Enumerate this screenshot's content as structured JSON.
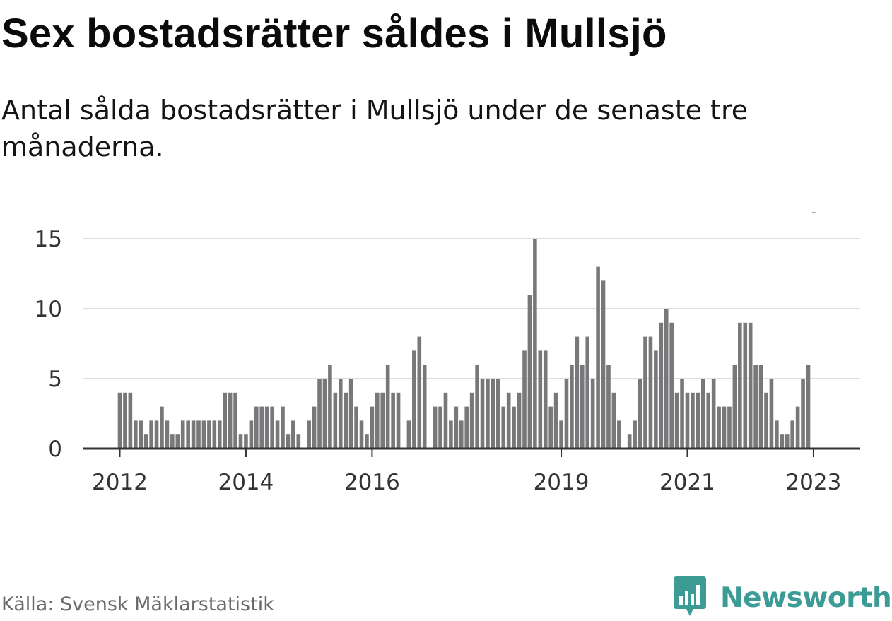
{
  "title": "Sex bostadsrätter såldes i Mullsjö",
  "subtitle": "Antal sålda bostadsrätter i Mullsjö under de senaste tre månaderna.",
  "source": "Källa: Svensk Mäklarstatistik",
  "brand": {
    "name": "Newsworthy",
    "icon": "bar-chart-logo-icon"
  },
  "colors": {
    "bar": "#78787a",
    "highlight": "#17a097",
    "grid": "#dddddd",
    "axis": "#333333",
    "brand": "#3c9c95"
  },
  "chart_data": {
    "type": "bar",
    "title": "Sex bostadsrätter såldes i Mullsjö",
    "subtitle": "Antal sålda bostadsrätter i Mullsjö under de senaste tre månaderna.",
    "xlabel": "",
    "ylabel": "",
    "ylim": [
      0,
      15
    ],
    "yticks": [
      0,
      5,
      10,
      15
    ],
    "grid": true,
    "start": {
      "year": 2012,
      "month": 1
    },
    "xticks": [
      {
        "label": "2012",
        "index": 0
      },
      {
        "label": "2014",
        "index": 24
      },
      {
        "label": "2016",
        "index": 48
      },
      {
        "label": "2019",
        "index": 84
      },
      {
        "label": "2021",
        "index": 108
      },
      {
        "label": "2023",
        "index": 132
      }
    ],
    "values": [
      4,
      4,
      4,
      2,
      2,
      1,
      2,
      2,
      3,
      2,
      1,
      1,
      2,
      2,
      2,
      2,
      2,
      2,
      2,
      2,
      4,
      4,
      4,
      1,
      1,
      2,
      3,
      3,
      3,
      3,
      2,
      3,
      1,
      2,
      1,
      0,
      2,
      3,
      5,
      5,
      6,
      4,
      5,
      4,
      5,
      3,
      2,
      1,
      3,
      4,
      4,
      6,
      4,
      4,
      0,
      2,
      7,
      8,
      6,
      0,
      3,
      3,
      4,
      2,
      3,
      2,
      3,
      4,
      6,
      5,
      5,
      5,
      5,
      3,
      4,
      3,
      4,
      7,
      11,
      15,
      7,
      7,
      3,
      4,
      2,
      5,
      6,
      8,
      6,
      8,
      5,
      13,
      12,
      6,
      4,
      2,
      0,
      1,
      2,
      5,
      8,
      8,
      7,
      9,
      10,
      9,
      4,
      5,
      4,
      4,
      4,
      5,
      4,
      5,
      3,
      3,
      3,
      6,
      9,
      9,
      9,
      6,
      6,
      4,
      5,
      2,
      1,
      1,
      2,
      3,
      5,
      6
    ],
    "highlight_index": 132,
    "highlight_label": "6"
  }
}
